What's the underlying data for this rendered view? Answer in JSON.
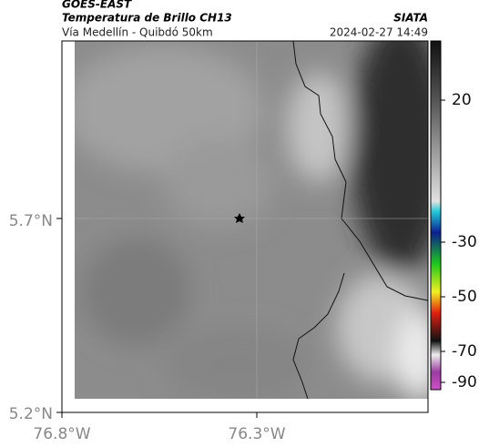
{
  "header": {
    "satellite": "GOES-EAST",
    "product": "Temperatura de Brillo CH13",
    "region": "Vía Medellín - Quibdó 50km",
    "source": "SIATA",
    "timestamp": "2024-02-27 14:49"
  },
  "map": {
    "lat_labels": [
      "5.7°N",
      "5.2°N"
    ],
    "lon_labels": [
      "76.8°W",
      "76.3°W"
    ]
  },
  "colorbar": {
    "ticks": [
      20,
      -30,
      -50,
      -70,
      -90
    ]
  }
}
